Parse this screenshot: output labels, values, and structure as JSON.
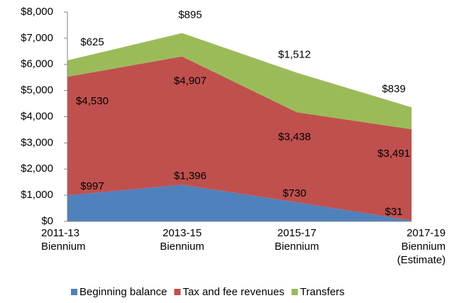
{
  "chart_data": {
    "type": "stacked-area",
    "categories": [
      "2011-13\nBiennium",
      "2013-15\nBiennium",
      "2015-17\nBiennium",
      "2017-19\nBiennium\n(Estimate)"
    ],
    "series": [
      {
        "name": "Beginning balance",
        "color": "#4f81bd",
        "values": [
          997,
          1396,
          730,
          31
        ],
        "value_labels": [
          "$997",
          "$1,396",
          "$730",
          "$31"
        ]
      },
      {
        "name": "Tax and fee revenues",
        "color": "#c0504d",
        "values": [
          4530,
          4907,
          3438,
          3491
        ],
        "value_labels": [
          "$4,530",
          "$4,907",
          "$3,438",
          "$3,491"
        ]
      },
      {
        "name": "Transfers",
        "color": "#9bbb59",
        "values": [
          625,
          895,
          1512,
          839
        ],
        "value_labels": [
          "$625",
          "$895",
          "$1,512",
          "$839"
        ]
      }
    ],
    "ylim": [
      0,
      8000
    ],
    "yticks": [
      {
        "value": 0,
        "label": "$0"
      },
      {
        "value": 1000,
        "label": "$1,000"
      },
      {
        "value": 2000,
        "label": "$2,000"
      },
      {
        "value": 3000,
        "label": "$3,000"
      },
      {
        "value": 4000,
        "label": "$4,000"
      },
      {
        "value": 5000,
        "label": "$5,000"
      },
      {
        "value": 6000,
        "label": "$6,000"
      },
      {
        "value": 7000,
        "label": "$7,000"
      },
      {
        "value": 8000,
        "label": "$8,000"
      }
    ],
    "grid": false,
    "legend": "bottom"
  }
}
